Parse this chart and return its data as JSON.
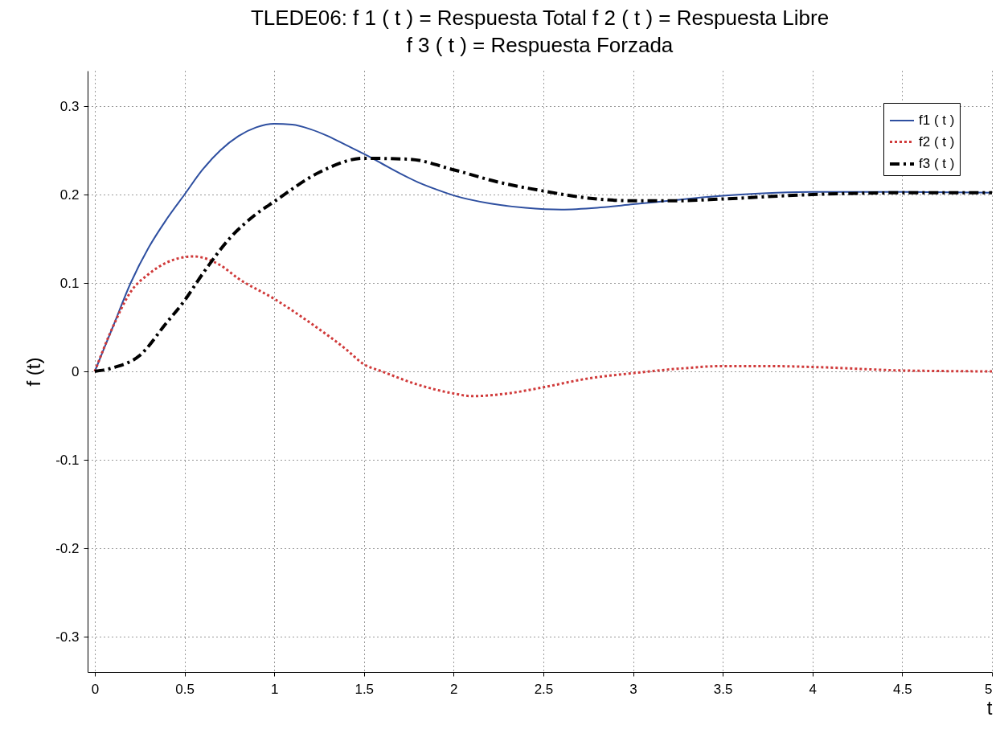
{
  "chart_data": {
    "type": "line",
    "title": "TLEDE06: f 1 ( t ) = Respuesta Total   f 2 ( t ) = Respuesta Libre\nf 3 ( t ) = Respuesta Forzada",
    "xlabel": "t",
    "ylabel": "f (t)",
    "xlim": [
      -0.04,
      5
    ],
    "xticks": [
      0,
      0.5,
      1,
      1.5,
      2,
      2.5,
      3,
      3.5,
      4,
      4.5,
      5
    ],
    "ylim": [
      -0.34,
      0.34
    ],
    "yticks": [
      -0.3,
      -0.2,
      -0.1,
      0,
      0.1,
      0.2,
      0.3
    ],
    "grid": true,
    "legend": "top right",
    "series": [
      {
        "name": "f1 ( t )",
        "color": "#2e4fa0",
        "line_style": "solid",
        "x": [
          0,
          0.1,
          0.2,
          0.3,
          0.4,
          0.5,
          0.6,
          0.7,
          0.8,
          0.9,
          1,
          1.1,
          1.2,
          1.3,
          1.4,
          1.5,
          1.6,
          1.7,
          1.8,
          1.9,
          2,
          2.2,
          2.4,
          2.6,
          2.8,
          3,
          3.2,
          3.4,
          3.6,
          3.8,
          4,
          4.5,
          5
        ],
        "values": [
          0,
          0.05,
          0.1,
          0.14,
          0.172,
          0.2,
          0.228,
          0.25,
          0.266,
          0.276,
          0.28,
          0.279,
          0.274,
          0.266,
          0.256,
          0.246,
          0.235,
          0.224,
          0.214,
          0.206,
          0.199,
          0.19,
          0.185,
          0.183,
          0.185,
          0.189,
          0.193,
          0.197,
          0.2,
          0.202,
          0.203,
          0.203,
          0.202
        ]
      },
      {
        "name": "f2 ( t )",
        "color": "#d03a3a",
        "line_style": "dotted",
        "x": [
          0,
          0.1,
          0.2,
          0.3,
          0.4,
          0.55,
          0.7,
          0.8,
          1,
          1.2,
          1.4,
          1.5,
          1.6,
          1.8,
          2,
          2.1,
          2.3,
          2.5,
          2.75,
          3,
          3.25,
          3.5,
          3.75,
          4,
          4.5,
          5
        ],
        "values": [
          0,
          0.05,
          0.09,
          0.11,
          0.123,
          0.13,
          0.12,
          0.105,
          0.082,
          0.055,
          0.025,
          0.008,
          0,
          -0.015,
          -0.025,
          -0.028,
          -0.025,
          -0.018,
          -0.008,
          -0.002,
          0.003,
          0.006,
          0.006,
          0.005,
          0.001,
          0
        ]
      },
      {
        "name": "f3 ( t )",
        "color": "#000000",
        "line_style": "dashdot",
        "x": [
          0,
          0.1,
          0.25,
          0.4,
          0.5,
          0.6,
          0.75,
          0.9,
          1,
          1.25,
          1.5,
          1.75,
          2,
          2.25,
          2.5,
          2.75,
          3,
          3.25,
          3.5,
          4,
          4.5,
          5
        ],
        "values": [
          0,
          0.004,
          0.018,
          0.055,
          0.08,
          0.11,
          0.15,
          0.178,
          0.192,
          0.225,
          0.241,
          0.24,
          0.228,
          0.214,
          0.204,
          0.196,
          0.193,
          0.193,
          0.195,
          0.2,
          0.202,
          0.202
        ]
      }
    ]
  }
}
